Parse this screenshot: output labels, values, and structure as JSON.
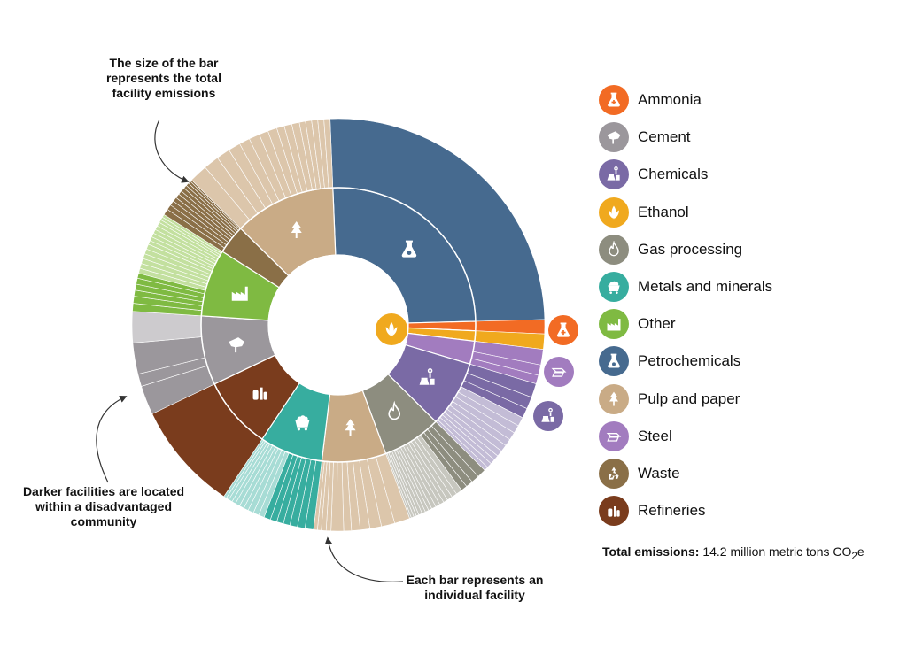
{
  "chart_data": {
    "type": "sunburst",
    "total_label": "Total emissions:",
    "total_value": "14.2 million metric tons CO",
    "total_sub": "2",
    "total_suffix": "e",
    "annotations": {
      "size": "The size of the bar represents the total facility emissions",
      "darker": "Darker facilities are located within a disadvantaged community",
      "each": "Each bar represents an individual facility"
    },
    "legend": [
      {
        "name": "Ammonia",
        "color": "#f26b24",
        "icon": "flask-plus-icon"
      },
      {
        "name": "Cement",
        "color": "#9b979c",
        "icon": "cement-icon"
      },
      {
        "name": "Chemicals",
        "color": "#7a6aa5",
        "icon": "chemicals-icon"
      },
      {
        "name": "Ethanol",
        "color": "#f0a91e",
        "icon": "corn-icon"
      },
      {
        "name": "Gas processing",
        "color": "#8d8d7f",
        "icon": "flame-icon"
      },
      {
        "name": "Metals and minerals",
        "color": "#37ad9f",
        "icon": "minecart-icon"
      },
      {
        "name": "Other",
        "color": "#7fba42",
        "icon": "factory-icon"
      },
      {
        "name": "Petrochemicals",
        "color": "#466a8f",
        "icon": "flask-icon"
      },
      {
        "name": "Pulp and paper",
        "color": "#c9ab86",
        "icon": "tree-icon"
      },
      {
        "name": "Steel",
        "color": "#a27cbf",
        "icon": "steel-beam-icon"
      },
      {
        "name": "Waste",
        "color": "#8a6f47",
        "icon": "recycle-icon"
      },
      {
        "name": "Refineries",
        "color": "#7a3c1d",
        "icon": "refinery-icon"
      }
    ],
    "sectors": [
      {
        "name": "Petrochemicals",
        "share": 0.251,
        "color": "#466a8f",
        "light": "#466a8f",
        "facilities": [
          1.0
        ],
        "dark_count": 1
      },
      {
        "name": "Ammonia",
        "share": 0.011,
        "color": "#f26b24",
        "light": "#f26b24",
        "facilities": [
          1.0
        ],
        "dark_count": 1
      },
      {
        "name": "Ethanol",
        "share": 0.012,
        "color": "#f0a91e",
        "light": "#f0a91e",
        "facilities": [
          1.0
        ],
        "dark_count": 1
      },
      {
        "name": "Steel",
        "share": 0.027,
        "color": "#a27cbf",
        "light": "#a27cbf",
        "facilities": [
          0.45,
          0.3,
          0.25
        ],
        "dark_count": 3
      },
      {
        "name": "Chemicals",
        "share": 0.078,
        "color": "#7a6aa5",
        "light": "#c3bcd6",
        "facilities": [
          0.14,
          0.12,
          0.1,
          0.09,
          0.08,
          0.08,
          0.07,
          0.07,
          0.06,
          0.05,
          0.05,
          0.05,
          0.04
        ],
        "dark_count": 3
      },
      {
        "name": "Gas processing",
        "share": 0.069,
        "color": "#8d8d7f",
        "light": "#c7c7bf",
        "facilities": [
          0.1,
          0.09,
          0.08,
          0.07,
          0.07,
          0.06,
          0.06,
          0.05,
          0.05,
          0.05,
          0.05,
          0.04,
          0.04,
          0.04,
          0.04,
          0.03,
          0.03,
          0.03,
          0.02
        ],
        "dark_count": 4
      },
      {
        "name": "Pulp and paper",
        "share": 0.075,
        "color": "#c9ab86",
        "light": "#dcc6ab",
        "facilities": [
          0.16,
          0.14,
          0.12,
          0.1,
          0.09,
          0.08,
          0.07,
          0.06,
          0.05,
          0.05,
          0.04,
          0.04
        ],
        "dark_count": 0
      },
      {
        "name": "Metals and minerals",
        "share": 0.074,
        "color": "#37ad9f",
        "light": "#a7dcd5",
        "facilities": [
          0.09,
          0.08,
          0.08,
          0.07,
          0.07,
          0.07,
          0.07,
          0.06,
          0.06,
          0.06,
          0.05,
          0.05,
          0.05,
          0.04,
          0.04,
          0.03,
          0.03
        ],
        "dark_count": 7
      },
      {
        "name": "Refineries",
        "share": 0.085,
        "color": "#7a3c1d",
        "light": "#7a3c1d",
        "facilities": [
          1.0
        ],
        "dark_count": 1
      },
      {
        "name": "Cement",
        "share": 0.081,
        "color": "#9b979c",
        "light": "#cdcbce",
        "facilities": [
          0.28,
          0.12,
          0.3,
          0.3
        ],
        "dark_count": 3
      },
      {
        "name": "Other",
        "share": 0.079,
        "color": "#7fba42",
        "light": "#c3e09f",
        "facilities": [
          0.08,
          0.07,
          0.06,
          0.06,
          0.06,
          0.05,
          0.05,
          0.05,
          0.05,
          0.05,
          0.05,
          0.05,
          0.04,
          0.04,
          0.04,
          0.04,
          0.04,
          0.04,
          0.03,
          0.03,
          0.03
        ],
        "dark_count": 6
      },
      {
        "name": "Waste",
        "share": 0.034,
        "color": "#8a6f47",
        "light": "#8a6f47",
        "facilities": [
          0.14,
          0.12,
          0.11,
          0.1,
          0.1,
          0.09,
          0.09,
          0.08,
          0.07,
          0.06,
          0.04
        ],
        "dark_count": 11
      },
      {
        "name": "Pulp and paper",
        "share": 0.119,
        "color": "#c9ab86",
        "light": "#dcc6ab",
        "facilities": [
          0.12,
          0.1,
          0.09,
          0.08,
          0.07,
          0.07,
          0.06,
          0.06,
          0.05,
          0.05,
          0.05,
          0.04,
          0.04,
          0.04,
          0.04,
          0.04
        ],
        "dark_count": 0
      }
    ]
  }
}
